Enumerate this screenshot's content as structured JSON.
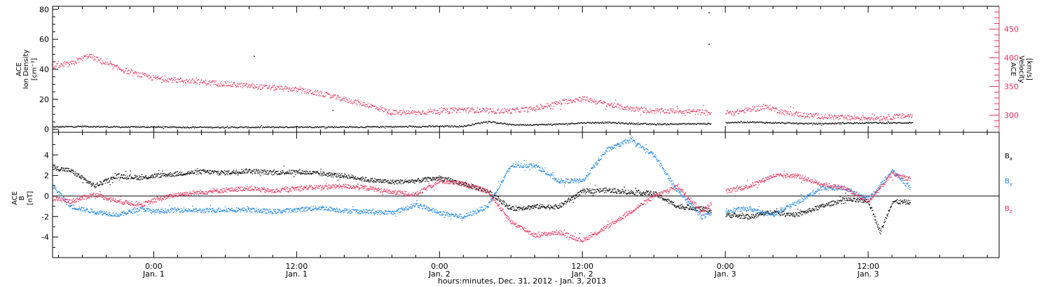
{
  "colors": {
    "black": "#000000",
    "pink": "#e8325a",
    "blue": "#1e87e6"
  },
  "xaxis": {
    "label": "hours:minutes, Dec. 31, 2012 - Jan. 3, 2013",
    "ticks": [
      {
        "t": 0,
        "time": "0:00",
        "day": "Jan. 1"
      },
      {
        "t": 12,
        "time": "12:00",
        "day": "Jan. 1"
      },
      {
        "t": 24,
        "time": "0:00",
        "day": "Jan. 2"
      },
      {
        "t": 36,
        "time": "12:00",
        "day": "Jan. 2"
      },
      {
        "t": 48,
        "time": "0:00",
        "day": "Jan. 3"
      },
      {
        "t": 60,
        "time": "12:00",
        "day": "Jan. 3"
      }
    ]
  },
  "panels": {
    "top": {
      "ylabel_lines": [
        "ACE",
        "Ion Density"
      ],
      "yunit": "[cm⁻³]",
      "right_label_lines": [
        "ACE",
        "Velocity"
      ],
      "right_unit": "[km/s]",
      "left_ticks": [
        "0",
        "20",
        "40",
        "60",
        "80"
      ],
      "right_ticks": [
        "300",
        "350",
        "400",
        "450"
      ]
    },
    "bottom": {
      "ylabel_lines": [
        "ACE",
        "B"
      ],
      "yunit": "[nT]",
      "left_ticks": [
        "-4",
        "-2",
        "0",
        "2",
        "4"
      ],
      "legend": [
        {
          "name": "Bx",
          "color": "#000000"
        },
        {
          "name": "By",
          "color": "#1e87e6"
        },
        {
          "name": "Bz",
          "color": "#e8325a"
        }
      ]
    }
  },
  "chart_data": [
    {
      "type": "scatter",
      "title": "",
      "xlabel": "hours:minutes, Dec. 31, 2012 - Jan. 3, 2013",
      "xlim_hours_from_jan1": [
        -8.5,
        71
      ],
      "ylabel": "ACE Ion Density [cm⁻³]",
      "ylim": [
        -2,
        82
      ],
      "ylabel_right": "ACE Velocity [km/s]",
      "ylim_right": [
        270,
        490
      ],
      "series": [
        {
          "axis": "left",
          "color": "#000000",
          "x": [
            -8.5,
            -6,
            -3,
            0,
            3,
            6,
            9,
            12,
            15,
            18,
            21,
            24,
            26,
            28,
            30,
            32,
            34,
            36,
            38,
            40,
            42,
            44,
            46.5,
            48.5,
            50,
            52,
            54,
            56,
            58,
            60,
            62,
            63.7
          ],
          "y": [
            1.8,
            2.2,
            1.8,
            1.8,
            1.6,
            1.6,
            1.6,
            1.8,
            1.8,
            1.8,
            2.0,
            2.2,
            2.3,
            5.5,
            3.3,
            3.3,
            3.6,
            4.6,
            4.8,
            4.1,
            3.6,
            3.8,
            4.0,
            4.8,
            5.1,
            4.6,
            4.2,
            4.0,
            4.4,
            4.6,
            4.5,
            4.7
          ]
        },
        {
          "axis": "right",
          "color": "#e8325a",
          "x": [
            -8.5,
            -7,
            -5.5,
            -4,
            -2,
            0,
            3,
            6,
            9,
            12,
            14,
            16,
            18,
            20,
            22,
            24,
            26,
            28,
            30,
            32,
            34,
            36,
            38,
            40,
            42,
            44,
            46.5,
            48.5,
            50,
            51.5,
            53,
            55,
            58,
            61,
            63.7
          ],
          "y": [
            385,
            390,
            405,
            390,
            375,
            365,
            360,
            355,
            350,
            345,
            338,
            328,
            318,
            305,
            305,
            308,
            310,
            308,
            308,
            312,
            322,
            330,
            320,
            312,
            308,
            308,
            305,
            305,
            310,
            315,
            305,
            300,
            296,
            296,
            300
          ]
        }
      ],
      "outliers": [
        {
          "x": 8.4,
          "y": 49.0
        },
        {
          "x": 46.6,
          "y": 78.0
        },
        {
          "x": 46.6,
          "y": 57.0
        },
        {
          "x": 15.0,
          "y": 13.0
        }
      ],
      "data_gap_hours": [
        46.8,
        48.0
      ]
    },
    {
      "type": "scatter",
      "title": "",
      "xlabel": "hours:minutes, Dec. 31, 2012 - Jan. 3, 2013",
      "xlim_hours_from_jan1": [
        -8.5,
        71
      ],
      "ylabel": "ACE B [nT]",
      "ylim": [
        -6,
        6.2
      ],
      "series": [
        {
          "name": "Bx",
          "color": "#000000",
          "x": [
            -8.5,
            -7,
            -5,
            -3,
            -1,
            0,
            2,
            4,
            6,
            8,
            10,
            12,
            14,
            16,
            18,
            20,
            22,
            24,
            26,
            28,
            30,
            32,
            34,
            36,
            38,
            40,
            42,
            44,
            46,
            48,
            50,
            52,
            54,
            56,
            58,
            60,
            61,
            62,
            63.5
          ],
          "y": [
            2.8,
            2.5,
            1.0,
            2.0,
            1.8,
            2.0,
            2.2,
            2.4,
            2.3,
            2.5,
            2.3,
            2.4,
            2.2,
            2.0,
            1.6,
            1.4,
            1.5,
            1.8,
            1.2,
            0.5,
            -1.2,
            -1.0,
            -1.0,
            0.5,
            0.6,
            0.4,
            0.3,
            -1.0,
            -1.2,
            -1.8,
            -2.0,
            -1.5,
            -1.8,
            -1.0,
            -0.3,
            -0.5,
            -3.5,
            -0.5,
            -0.6
          ]
        },
        {
          "name": "By",
          "color": "#1e87e6",
          "x": [
            -8.5,
            -7,
            -5,
            -3,
            -1,
            0,
            2,
            4,
            6,
            8,
            10,
            12,
            14,
            16,
            18,
            20,
            22,
            24,
            26,
            28,
            30,
            32,
            34,
            36,
            38,
            40,
            42,
            44,
            46,
            48,
            50,
            52,
            54,
            56,
            58,
            60,
            62,
            63.5
          ],
          "y": [
            1.0,
            -1.0,
            -1.5,
            -1.8,
            -1.2,
            -1.5,
            -1.3,
            -1.4,
            -1.3,
            -1.3,
            -1.5,
            -1.3,
            -1.1,
            -1.4,
            -1.5,
            -1.6,
            -0.8,
            -1.6,
            -2.0,
            -1.0,
            3.0,
            3.0,
            1.5,
            1.5,
            4.5,
            5.5,
            4.0,
            0.5,
            -2.0,
            -1.4,
            -1.2,
            -1.8,
            -0.6,
            0.8,
            0.8,
            -0.3,
            2.5,
            0.8
          ]
        },
        {
          "name": "Bz",
          "color": "#e8325a",
          "x": [
            -8.5,
            -7,
            -5,
            -3,
            -1,
            0,
            2,
            4,
            6,
            8,
            10,
            12,
            14,
            16,
            18,
            20,
            22,
            24,
            26,
            28,
            30,
            32,
            34,
            36,
            38,
            40,
            42,
            44,
            46,
            48,
            50,
            52,
            54,
            56,
            58,
            60,
            62,
            63.5
          ],
          "y": [
            -0.2,
            -0.5,
            0.2,
            -0.5,
            -0.8,
            -0.4,
            0.2,
            0.4,
            0.6,
            0.8,
            0.5,
            0.8,
            0.9,
            1.0,
            0.8,
            0.4,
            0.2,
            1.5,
            1.2,
            0.5,
            -2.5,
            -3.8,
            -3.5,
            -4.3,
            -3.0,
            -1.5,
            0.0,
            1.0,
            -1.5,
            0.5,
            1.0,
            2.0,
            2.0,
            1.2,
            0.8,
            -0.5,
            2.2,
            1.7
          ]
        }
      ],
      "zero_line": true,
      "data_gap_hours": [
        46.8,
        48.0
      ]
    }
  ]
}
